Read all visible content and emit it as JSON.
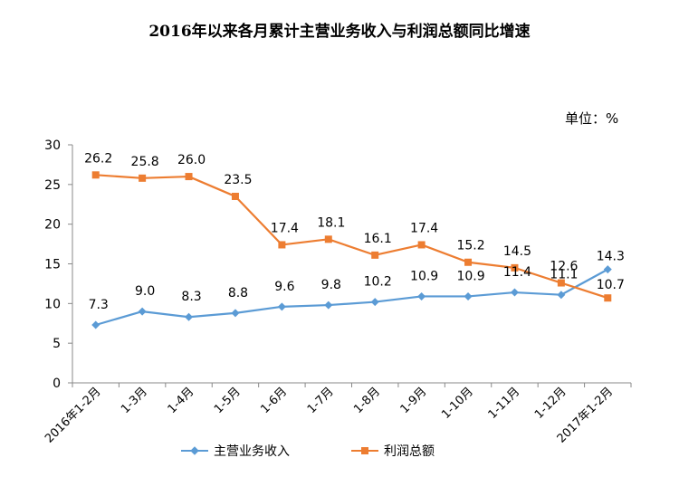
{
  "chart_data": {
    "type": "line",
    "title": "2016年以来各月累计主营业务收入与利润总额同比增速",
    "unit_label": "单位：%",
    "categories": [
      "2016年1-2月",
      "1-3月",
      "1-4月",
      "1-5月",
      "1-6月",
      "1-7月",
      "1-8月",
      "1-9月",
      "1-10月",
      "1-11月",
      "1-12月",
      "2017年1-2月"
    ],
    "ylim": [
      0,
      30
    ],
    "yticks": [
      0,
      5,
      10,
      15,
      20,
      25,
      30
    ],
    "grid": false,
    "legend_position": "bottom",
    "series": [
      {
        "name": "主营业务收入",
        "color": "#5b9bd5",
        "marker": "diamond",
        "values": [
          7.3,
          9.0,
          8.3,
          8.8,
          9.6,
          9.8,
          10.2,
          10.9,
          10.9,
          11.4,
          11.1,
          14.3
        ]
      },
      {
        "name": "利润总额",
        "color": "#ed7d31",
        "marker": "square",
        "values": [
          26.2,
          25.8,
          26.0,
          23.5,
          17.4,
          18.1,
          16.1,
          17.4,
          15.2,
          14.5,
          12.6,
          10.7
        ]
      }
    ]
  }
}
